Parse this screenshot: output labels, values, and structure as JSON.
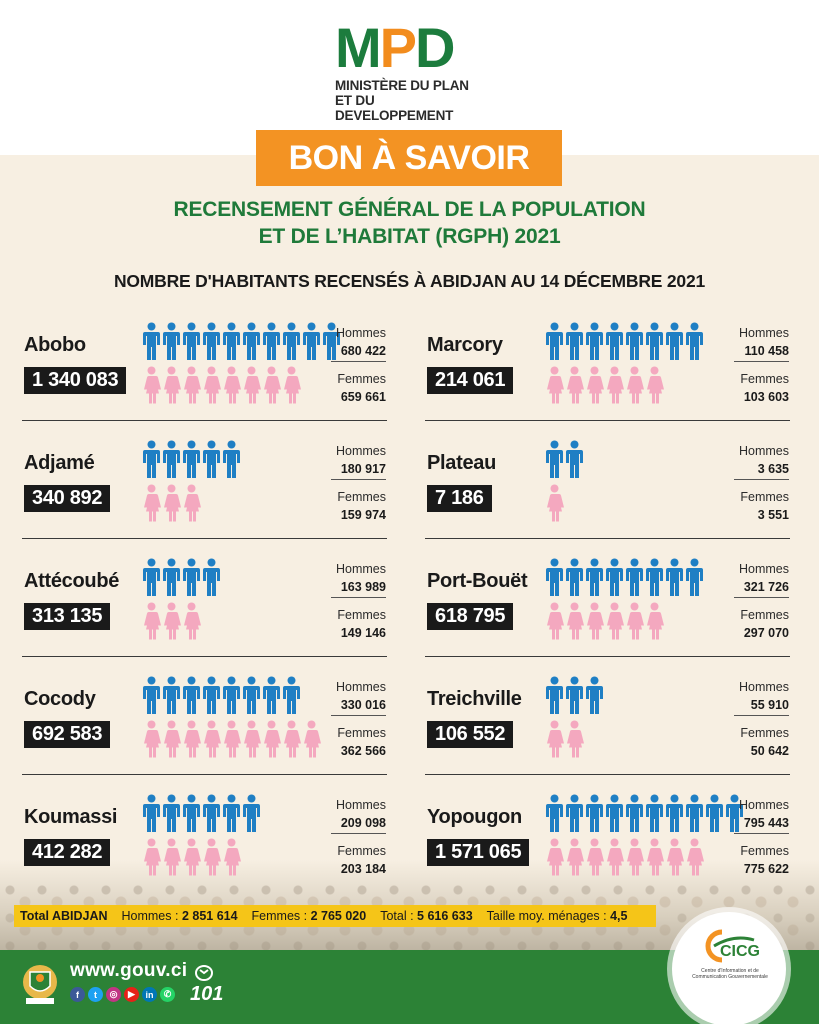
{
  "header": {
    "logo_mpd": "MPD",
    "logo_line1": "MINISTÈRE DU PLAN",
    "logo_line2": "ET DU DEVELOPPEMENT",
    "banner": "BON À SAVOIR",
    "rgph_line1": "RECENSEMENT GÉNÉRAL DE LA POPULATION",
    "rgph_line2": "ET DE L’HABITAT (RGPH) 2021",
    "count_title": "NOMBRE D'HABITANTS RECENSÉS À ABIDJAN AU 14 DÉCEMBRE 2021"
  },
  "labels": {
    "hommes": "Hommes",
    "femmes": "Femmes"
  },
  "colors": {
    "men": "#1f7fc4",
    "women": "#f4a8bf",
    "green": "#1f7a3a",
    "orange": "#f39323",
    "yellow": "#f5c518"
  },
  "communes": [
    {
      "name": "Abobo",
      "total": "1 340 083",
      "hommes": "680 422",
      "femmes": "659 661",
      "men_icons": 10,
      "women_icons": 8
    },
    {
      "name": "Adjamé",
      "total": "340 892",
      "hommes": "180 917",
      "femmes": "159 974",
      "men_icons": 5,
      "women_icons": 3
    },
    {
      "name": "Attécoubé",
      "total": "313 135",
      "hommes": "163 989",
      "femmes": "149 146",
      "men_icons": 4,
      "women_icons": 3
    },
    {
      "name": "Cocody",
      "total": "692 583",
      "hommes": "330 016",
      "femmes": "362 566",
      "men_icons": 8,
      "women_icons": 9
    },
    {
      "name": "Koumassi",
      "total": "412 282",
      "hommes": "209 098",
      "femmes": "203 184",
      "men_icons": 6,
      "women_icons": 5
    },
    {
      "name": "Marcory",
      "total": "214 061",
      "hommes": "110 458",
      "femmes": "103 603",
      "men_icons": 8,
      "women_icons": 6
    },
    {
      "name": "Plateau",
      "total": "7 186",
      "hommes": "3 635",
      "femmes": "3 551",
      "men_icons": 2,
      "women_icons": 1
    },
    {
      "name": "Port-Bouët",
      "total": "618 795",
      "hommes": "321 726",
      "femmes": "297 070",
      "men_icons": 8,
      "women_icons": 6
    },
    {
      "name": "Treichville",
      "total": "106 552",
      "hommes": "55 910",
      "femmes": "50 642",
      "men_icons": 3,
      "women_icons": 2
    },
    {
      "name": "Yopougon",
      "total": "1 571 065",
      "hommes": "795 443",
      "femmes": "775 622",
      "men_icons": 10,
      "women_icons": 8
    }
  ],
  "total": {
    "label": "Total ABIDJAN",
    "hommes_label": "Hommes :",
    "hommes": "2 851 614",
    "femmes_label": "Femmes :",
    "femmes": "2 765 020",
    "total_label": "Total :",
    "total": "5 616 633",
    "menages_label": "Taille moy. ménages :",
    "menages": "4,5"
  },
  "footer": {
    "website": "www.gouv.ci",
    "number": "101",
    "socials": [
      {
        "icon": "facebook-icon",
        "glyph": "f",
        "color": "#3b5998"
      },
      {
        "icon": "twitter-icon",
        "glyph": "t",
        "color": "#1da1f2"
      },
      {
        "icon": "instagram-icon",
        "glyph": "◎",
        "color": "#c13584"
      },
      {
        "icon": "youtube-icon",
        "glyph": "▶",
        "color": "#e62117"
      },
      {
        "icon": "linkedin-icon",
        "glyph": "in",
        "color": "#0077b5"
      },
      {
        "icon": "whatsapp-icon",
        "glyph": "✆",
        "color": "#25d366"
      }
    ],
    "cicg_logo": "CICG",
    "cicg_sub": "Centre d'Information et de Communication Gouvernementale"
  }
}
